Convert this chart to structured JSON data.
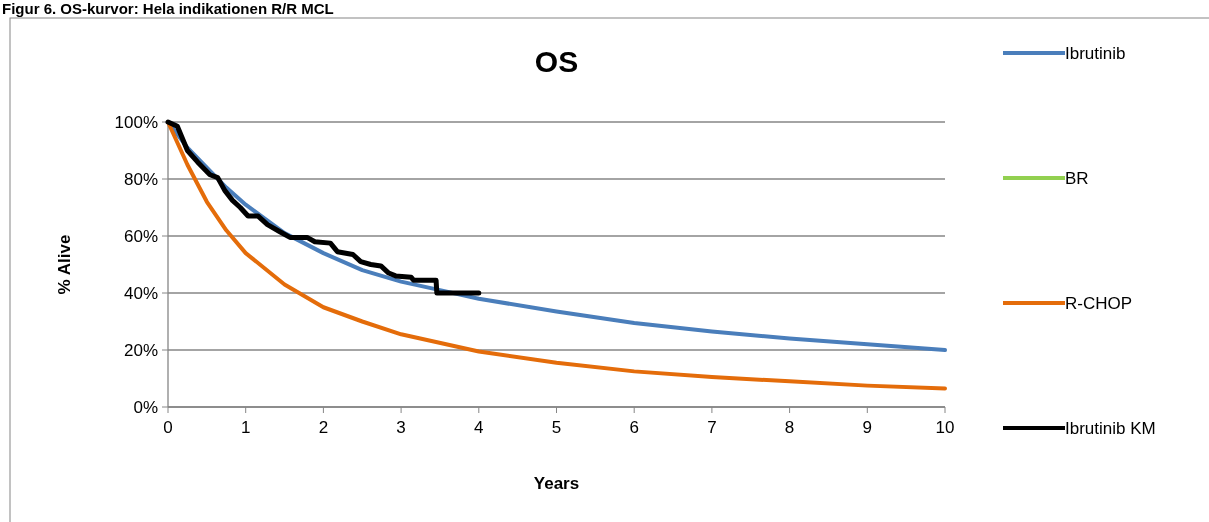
{
  "chart_data": {
    "type": "line",
    "title": "OS",
    "xlabel": "Years",
    "ylabel": "% Alive",
    "annotations": [
      "Figur 6. OS-kurvor: Hela indikationen R/R MCL"
    ],
    "xlim": [
      0,
      10
    ],
    "xticks": [
      0,
      1,
      2,
      3,
      4,
      5,
      6,
      7,
      8,
      9,
      10
    ],
    "ylim": [
      0,
      100
    ],
    "yticks": [
      {
        "value": 0,
        "label": "0%"
      },
      {
        "value": 20,
        "label": "20%"
      },
      {
        "value": 40,
        "label": "40%"
      },
      {
        "value": 60,
        "label": "60%"
      },
      {
        "value": 80,
        "label": "80%"
      },
      {
        "value": 100,
        "label": "100%"
      }
    ],
    "grid": "y",
    "legend": "right",
    "series": [
      {
        "name": "Ibrutinib",
        "color": "#4a7ebb",
        "x": [
          0,
          0.25,
          0.5,
          0.75,
          1,
          1.5,
          2,
          2.5,
          3,
          3.5,
          4,
          5,
          6,
          7,
          8,
          9,
          10
        ],
        "values": [
          100,
          91,
          84,
          77,
          71,
          61,
          54,
          48,
          44,
          41,
          38,
          33.5,
          29.5,
          26.5,
          24,
          22,
          20
        ]
      },
      {
        "name": "BR",
        "color": "#92d050"
      },
      {
        "name": "R-CHOP",
        "color": "#e46c0a",
        "x": [
          0,
          0.25,
          0.5,
          0.75,
          1,
          1.5,
          2,
          2.5,
          3,
          4,
          5,
          6,
          7,
          8,
          9,
          10
        ],
        "values": [
          100,
          85,
          72,
          62,
          54,
          43,
          35,
          30,
          25.5,
          19.5,
          15.5,
          12.5,
          10.5,
          9,
          7.5,
          6.5
        ]
      },
      {
        "name": "Ibrutinib KM",
        "color": "#000000",
        "x": [
          0,
          0.12,
          0.25,
          0.38,
          0.54,
          0.64,
          0.73,
          0.83,
          0.93,
          1.03,
          1.16,
          1.28,
          1.44,
          1.57,
          1.79,
          1.89,
          2.09,
          2.18,
          2.38,
          2.48,
          2.61,
          2.74,
          2.84,
          2.93,
          3.13,
          3.16,
          3.45,
          3.46,
          4.0
        ],
        "values": [
          100,
          98.5,
          90,
          86,
          81.5,
          80.5,
          76,
          72.5,
          70,
          67,
          67,
          64,
          61.5,
          59.5,
          59.5,
          58,
          57.5,
          54.5,
          53.5,
          51,
          50,
          49.5,
          47,
          46,
          45.5,
          44.5,
          44.5,
          40,
          40
        ]
      }
    ]
  }
}
